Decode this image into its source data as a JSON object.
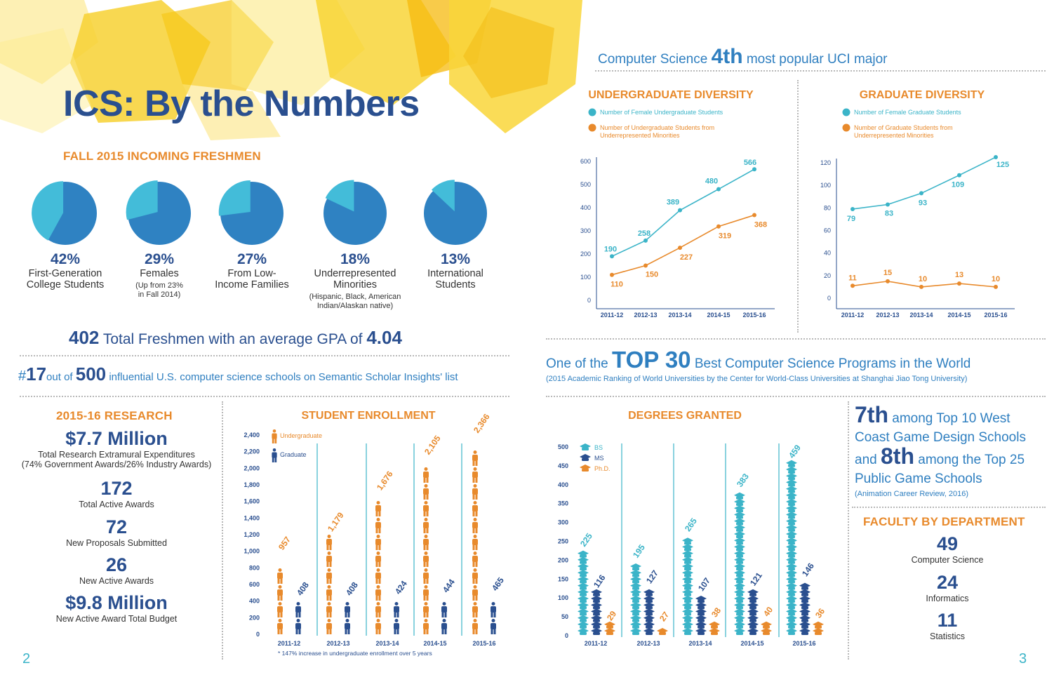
{
  "page": {
    "title": "ICS: By the Numbers",
    "page_left": "2",
    "page_right": "3"
  },
  "cs_major": {
    "prefix": "Computer Science",
    "rank": "4th",
    "suffix": "most popular UCI major"
  },
  "freshmen": {
    "heading": "FALL 2015 INCOMING FRESHMEN",
    "pies": [
      {
        "pct": "42%",
        "label1": "First-Generation",
        "label2": "College Students",
        "note1": "",
        "note2": "",
        "value": 42
      },
      {
        "pct": "29%",
        "label1": "Females",
        "label2": "",
        "note1": "(Up from 23%",
        "note2": "in Fall 2014)",
        "value": 29
      },
      {
        "pct": "27%",
        "label1": "From Low-",
        "label2": "Income Families",
        "note1": "",
        "note2": "",
        "value": 27
      },
      {
        "pct": "18%",
        "label1": "Underrepresented",
        "label2": "Minorities",
        "note1": "(Hispanic, Black, American",
        "note2": "Indian/Alaskan native)",
        "value": 18
      },
      {
        "pct": "13%",
        "label1": "International",
        "label2": "Students",
        "note1": "",
        "note2": "",
        "value": 13
      }
    ],
    "total_num": "402",
    "total_text": "Total Freshmen with an average GPA of",
    "gpa": "4.04"
  },
  "scholar": {
    "hash": "#",
    "rank": "17",
    "mid": "out of",
    "total": "500",
    "text": "influential U.S. computer science schools on Semantic Scholar Insights' list"
  },
  "top30": {
    "prefix": "One of the",
    "big": "TOP 30",
    "suffix": "Best Computer Science Programs in the World",
    "note": "(2015 Academic Ranking of World Universities by the Center for World-Class Universities at Shanghai Jiao Tong University)"
  },
  "research": {
    "heading": "2015-16 RESEARCH",
    "items": [
      {
        "num": "$7.7 Million",
        "label": "Total Research Extramural Expenditures",
        "note": "(74% Government Awards/26% Industry Awards)"
      },
      {
        "num": "172",
        "label": "Total Active Awards",
        "note": ""
      },
      {
        "num": "72",
        "label": "New Proposals Submitted",
        "note": ""
      },
      {
        "num": "26",
        "label": "New Active Awards",
        "note": ""
      },
      {
        "num": "$9.8 Million",
        "label": "New Active Award Total Budget",
        "note": ""
      }
    ]
  },
  "game": {
    "l1a": "7th",
    "l1b": "among Top 10 West",
    "l2": "Coast Game Design Schools",
    "l3a": "and",
    "l3b": "8th",
    "l3c": "among the Top 25",
    "l4": "Public Game Schools",
    "note": "(Animation Career Review, 2016)"
  },
  "faculty": {
    "heading": "FACULTY BY DEPARTMENT",
    "items": [
      {
        "num": "49",
        "label": "Computer Science"
      },
      {
        "num": "24",
        "label": "Informatics"
      },
      {
        "num": "11",
        "label": "Statistics"
      }
    ]
  },
  "colors": {
    "navy": "#2a4f8f",
    "orange": "#e88a2c",
    "teal": "#3bb4c8",
    "pie_dark": "#2f82c2",
    "pie_light": "#43bcd9"
  },
  "chart_data": [
    {
      "id": "undergrad",
      "type": "line",
      "title": "UNDERGRADUATE DIVERSITY",
      "categories": [
        "2011-12",
        "2012-13",
        "2013-14",
        "2014-15",
        "2015-16"
      ],
      "ylim": [
        0,
        600
      ],
      "yticks": [
        0,
        100,
        200,
        300,
        400,
        500,
        600
      ],
      "series": [
        {
          "name": "Number of Female Undergraduate Students",
          "color": "#3bb4c8",
          "values": [
            190,
            258,
            389,
            480,
            566
          ]
        },
        {
          "name": "Number of Undergraduate Students from Underrepresented Minorities",
          "color": "#e88a2c",
          "values": [
            110,
            150,
            227,
            319,
            368
          ]
        }
      ]
    },
    {
      "id": "grad",
      "type": "line",
      "title": "GRADUATE DIVERSITY",
      "categories": [
        "2011-12",
        "2012-13",
        "2013-14",
        "2014-15",
        "2015-16"
      ],
      "ylim": [
        0,
        120
      ],
      "yticks": [
        0,
        20,
        40,
        60,
        80,
        100,
        120
      ],
      "series": [
        {
          "name": "Number of Female Graduate Students",
          "color": "#3bb4c8",
          "values": [
            79,
            83,
            93,
            109,
            125
          ]
        },
        {
          "name": "Number of Graduate Students from Underrepresented Minorities",
          "color": "#e88a2c",
          "values": [
            11,
            15,
            10,
            13,
            10
          ]
        }
      ]
    },
    {
      "id": "enroll",
      "type": "bar",
      "title": "STUDENT ENROLLMENT",
      "categories": [
        "2011-12",
        "2012-13",
        "2013-14",
        "2014-15",
        "2015-16"
      ],
      "ylim": [
        0,
        2400
      ],
      "yticks": [
        0,
        200,
        400,
        600,
        800,
        1000,
        1200,
        1400,
        1600,
        1800,
        2000,
        2200,
        2400
      ],
      "ytick_labels": [
        "0",
        "200",
        "400",
        "600",
        "800",
        "1,000",
        "1,200",
        "1,400",
        "1,600",
        "1,800",
        "2,000",
        "2,200",
        "2,400"
      ],
      "series": [
        {
          "name": "Undergraduate",
          "color": "#e88a2c",
          "values": [
            957,
            1179,
            1676,
            2105,
            2366
          ],
          "labels": [
            "957",
            "1,179",
            "1,676",
            "2,105",
            "2,366"
          ]
        },
        {
          "name": "Graduate",
          "color": "#2a4f8f",
          "values": [
            408,
            408,
            424,
            444,
            465
          ],
          "labels": [
            "408",
            "408",
            "424",
            "444",
            "465"
          ]
        }
      ],
      "footnote": "* 147% increase in undergraduate enrollment over 5 years"
    },
    {
      "id": "degrees",
      "type": "bar",
      "title": "DEGREES GRANTED",
      "categories": [
        "2011-12",
        "2012-13",
        "2013-14",
        "2014-15",
        "2015-16"
      ],
      "ylim": [
        0,
        500
      ],
      "yticks": [
        0,
        50,
        100,
        150,
        200,
        250,
        300,
        350,
        400,
        450,
        500
      ],
      "series": [
        {
          "name": "BS",
          "color": "#3bb4c8",
          "values": [
            225,
            195,
            265,
            383,
            459
          ]
        },
        {
          "name": "MS",
          "color": "#2a4f8f",
          "values": [
            116,
            127,
            107,
            121,
            146
          ]
        },
        {
          "name": "Ph.D.",
          "color": "#e88a2c",
          "values": [
            29,
            27,
            38,
            40,
            36
          ]
        }
      ]
    }
  ]
}
